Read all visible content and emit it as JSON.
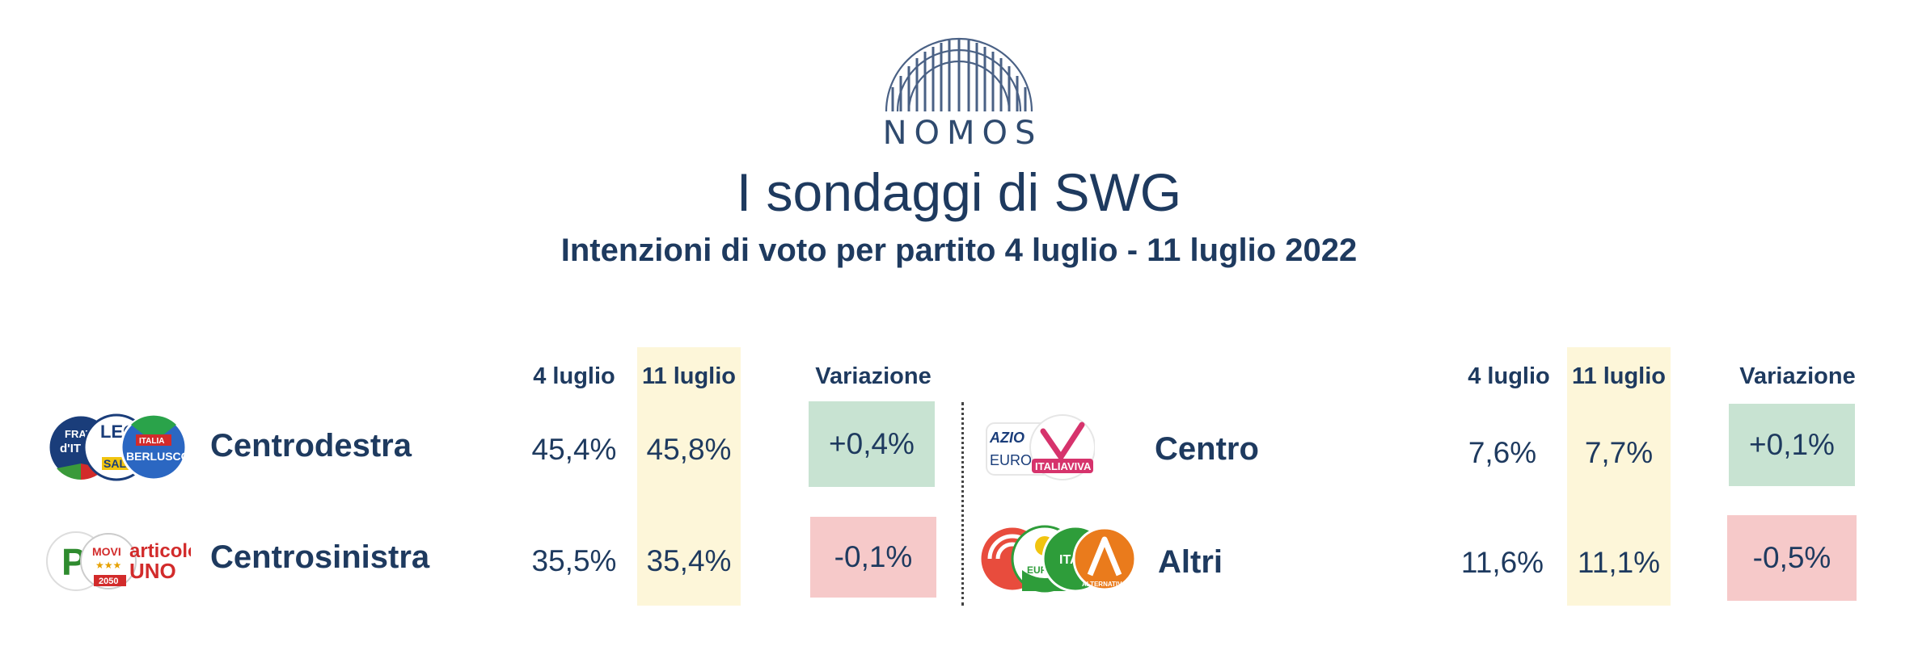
{
  "header": {
    "brand": "NOMOS",
    "title": "I sondaggi di SWG",
    "subtitle": "Intenzioni di voto per partito 4 luglio - 11 luglio 2022"
  },
  "columns": {
    "col1": "4 luglio",
    "col2": "11 luglio",
    "col3": "Variazione"
  },
  "chart_data": {
    "type": "table",
    "columns": [
      "4 luglio",
      "11 luglio",
      "Variazione"
    ],
    "rows": [
      {
        "name": "Centrodestra",
        "v1": "45,4%",
        "v2": "45,8%",
        "change": "+0,4%",
        "change_value": 0.4
      },
      {
        "name": "Centrosinistra",
        "v1": "35,5%",
        "v2": "35,4%",
        "change": "-0,1%",
        "change_value": -0.1
      },
      {
        "name": "Centro",
        "v1": "7,6%",
        "v2": "7,7%",
        "change": "+0,1%",
        "change_value": 0.1
      },
      {
        "name": "Altri",
        "v1": "11,6%",
        "v2": "11,1%",
        "change": "-0,5%",
        "change_value": -0.5
      }
    ]
  },
  "logo_text": {
    "centrodestra": [
      "FRAT d'IT",
      "LEG SAL",
      "FORZA ITALIA BERLUSCONI PRESIDENTE"
    ],
    "centrosinistra": [
      "P",
      "MOVI",
      "articolo UNO",
      "2050"
    ],
    "centro": [
      "AZIO EURO",
      "ITALIAVIVA"
    ],
    "altri": [
      "EUROPA VERDE",
      "ITALIA",
      "ALTERNATIVA"
    ]
  },
  "colors": {
    "navy": "#1e3a5f",
    "highlight": "#fdf6d9",
    "positive": "#c8e3d2",
    "negative": "#f6c9c9"
  }
}
